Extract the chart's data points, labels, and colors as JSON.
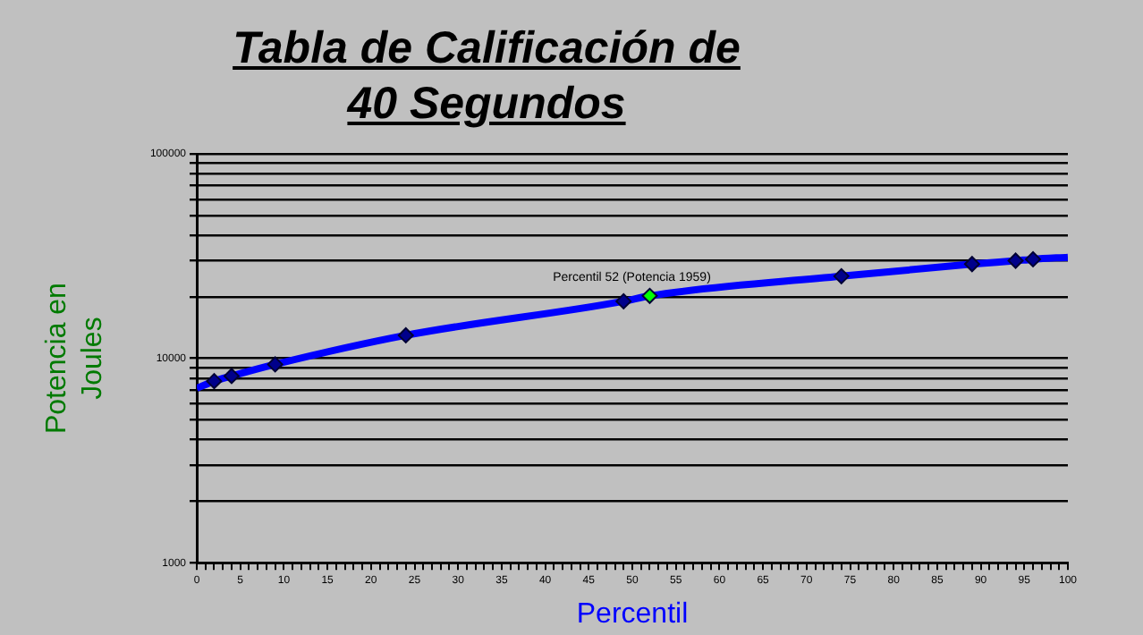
{
  "chart_data": {
    "type": "scatter",
    "title": "Tabla de Calificación de 40 Segundos",
    "xlabel": "Percentil",
    "ylabel": "Potencia en Joules",
    "xlim": [
      0,
      100
    ],
    "xticks": [
      0,
      {
        "value": 1,
        "label": null
      },
      {
        "value": 2,
        "label": null
      },
      {
        "value": 3,
        "label": null
      },
      {
        "value": 4,
        "label": null
      },
      5,
      {
        "value": 6,
        "label": null
      },
      {
        "value": 7,
        "label": null
      },
      {
        "value": 8,
        "label": null
      },
      {
        "value": 9,
        "label": null
      },
      10,
      {
        "value": 11,
        "label": null
      },
      {
        "value": 12,
        "label": null
      },
      {
        "value": 13,
        "label": null
      },
      {
        "value": 14,
        "label": null
      },
      15,
      {
        "value": 16,
        "label": null
      },
      {
        "value": 17,
        "label": null
      },
      {
        "value": 18,
        "label": null
      },
      {
        "value": 19,
        "label": null
      },
      20,
      {
        "value": 21,
        "label": null
      },
      {
        "value": 22,
        "label": null
      },
      {
        "value": 23,
        "label": null
      },
      {
        "value": 24,
        "label": null
      },
      25,
      {
        "value": 26,
        "label": null
      },
      {
        "value": 27,
        "label": null
      },
      {
        "value": 28,
        "label": null
      },
      {
        "value": 29,
        "label": null
      },
      30,
      {
        "value": 31,
        "label": null
      },
      {
        "value": 32,
        "label": null
      },
      {
        "value": 33,
        "label": null
      },
      {
        "value": 34,
        "label": null
      },
      35,
      {
        "value": 36,
        "label": null
      },
      {
        "value": 37,
        "label": null
      },
      {
        "value": 38,
        "label": null
      },
      {
        "value": 39,
        "label": null
      },
      40,
      {
        "value": 41,
        "label": null
      },
      {
        "value": 42,
        "label": null
      },
      {
        "value": 43,
        "label": null
      },
      {
        "value": 44,
        "label": null
      },
      45,
      {
        "value": 46,
        "label": null
      },
      {
        "value": 47,
        "label": null
      },
      {
        "value": 48,
        "label": null
      },
      {
        "value": 49,
        "label": null
      },
      50,
      {
        "value": 51,
        "label": null
      },
      {
        "value": 52,
        "label": null
      },
      {
        "value": 53,
        "label": null
      },
      {
        "value": 54,
        "label": null
      },
      55,
      {
        "value": 56,
        "label": null
      },
      {
        "value": 57,
        "label": null
      },
      {
        "value": 58,
        "label": null
      },
      {
        "value": 59,
        "label": null
      },
      60,
      {
        "value": 61,
        "label": null
      },
      {
        "value": 62,
        "label": null
      },
      {
        "value": 63,
        "label": null
      },
      {
        "value": 64,
        "label": null
      },
      65,
      {
        "value": 66,
        "label": null
      },
      {
        "value": 67,
        "label": null
      },
      {
        "value": 68,
        "label": null
      },
      {
        "value": 69,
        "label": null
      },
      70,
      {
        "value": 71,
        "label": null
      },
      {
        "value": 72,
        "label": null
      },
      {
        "value": 73,
        "label": null
      },
      {
        "value": 74,
        "label": null
      },
      75,
      {
        "value": 76,
        "label": null
      },
      {
        "value": 77,
        "label": null
      },
      {
        "value": 78,
        "label": null
      },
      {
        "value": 79,
        "label": null
      },
      80,
      {
        "value": 81,
        "label": null
      },
      {
        "value": 82,
        "label": null
      },
      {
        "value": 83,
        "label": null
      },
      {
        "value": 84,
        "label": null
      },
      85,
      {
        "value": 86,
        "label": null
      },
      {
        "value": 87,
        "label": null
      },
      {
        "value": 88,
        "label": null
      },
      {
        "value": 89,
        "label": null
      },
      90,
      {
        "value": 91,
        "label": null
      },
      {
        "value": 92,
        "label": null
      },
      {
        "value": 93,
        "label": null
      },
      {
        "value": 94,
        "label": null
      },
      95,
      {
        "value": 96,
        "label": null
      },
      {
        "value": 97,
        "label": null
      },
      {
        "value": 98,
        "label": null
      },
      {
        "value": 99,
        "label": null
      },
      100
    ],
    "log": "y",
    "ylim": [
      1000,
      100000
    ],
    "yticks": [
      1000,
      {
        "value": 2000,
        "label": null
      },
      {
        "value": 3000,
        "label": null
      },
      {
        "value": 4000,
        "label": null
      },
      {
        "value": 5000,
        "label": null
      },
      {
        "value": 6000,
        "label": null
      },
      {
        "value": 7000,
        "label": null
      },
      {
        "value": 8000,
        "label": null
      },
      {
        "value": 9000,
        "label": null
      },
      10000,
      {
        "value": 20000,
        "label": null
      },
      {
        "value": 30000,
        "label": null
      },
      {
        "value": 40000,
        "label": null
      },
      {
        "value": 50000,
        "label": null
      },
      {
        "value": 60000,
        "label": null
      },
      {
        "value": 70000,
        "label": null
      },
      {
        "value": 80000,
        "label": null
      },
      {
        "value": 90000,
        "label": null
      },
      100000
    ],
    "grid": "y",
    "series": [
      {
        "type": "line",
        "color": "#0000ff",
        "marker": "none",
        "line_style": "solid",
        "x": [
          0,
          2,
          4,
          9,
          24,
          49,
          52,
          74,
          89,
          94,
          96,
          100
        ],
        "values": [
          7140,
          7730,
          8190,
          9340,
          12950,
          19000,
          20200,
          25200,
          28900,
          30000,
          30500,
          31200
        ]
      },
      {
        "type": "scatter",
        "color": "#00008b",
        "marker": "diamond",
        "x": [
          2,
          4,
          9,
          24,
          49,
          74,
          89,
          94,
          96
        ],
        "values": [
          7730,
          8190,
          9340,
          12950,
          19000,
          25200,
          28900,
          30000,
          30500
        ]
      },
      {
        "type": "scatter",
        "color": "#00ff00",
        "marker": "diamond",
        "x": [
          52
        ],
        "values": [
          20200
        ]
      }
    ],
    "annotations": [
      {
        "text": "Percentil 52 (Potencia 1959)",
        "x": 52,
        "y": 20200
      }
    ]
  }
}
